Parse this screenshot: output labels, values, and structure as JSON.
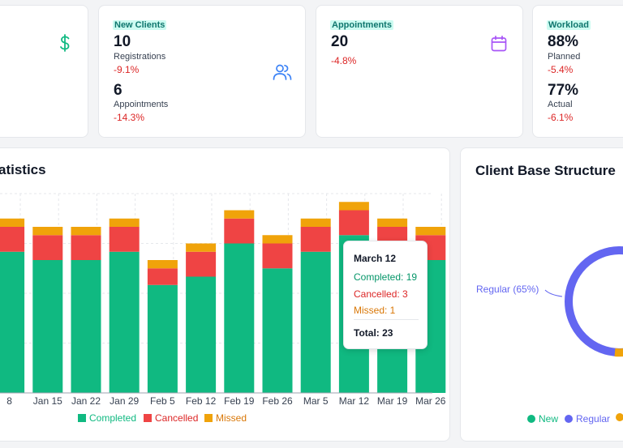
{
  "kpi": {
    "card0": {
      "icon": "dollar-icon"
    },
    "new_clients": {
      "label": "New Clients",
      "value1": "10",
      "sub1": "Registrations",
      "change1": "-9.1%",
      "value2": "6",
      "sub2": "Appointments",
      "change2": "-14.3%",
      "icon": "users-icon"
    },
    "appointments": {
      "label": "Appointments",
      "value": "20",
      "change": "-4.8%",
      "icon": "calendar-icon"
    },
    "workload": {
      "label": "Workload",
      "value1": "88%",
      "sub1": "Planned",
      "change1": "-5.4%",
      "value2": "77%",
      "sub2": "Actual",
      "change2": "-6.1%"
    }
  },
  "statistics": {
    "title": "atistics",
    "legend": {
      "completed": "Completed",
      "cancelled": "Cancelled",
      "missed": "Missed"
    },
    "tooltip": {
      "date": "March 12",
      "completed": "Completed: 19",
      "cancelled": "Cancelled: 3",
      "missed": "Missed: 1",
      "total": "Total: 23"
    }
  },
  "client_base": {
    "title": "Client Base Structure",
    "regular_label": "Regular (65%)",
    "legend": {
      "new": "New",
      "regular": "Regular"
    }
  },
  "colors": {
    "completed": "#10b981",
    "cancelled": "#ef4444",
    "missed": "#f0a30a",
    "regular": "#6366f1"
  },
  "chart_data": {
    "type": "bar",
    "stacked": true,
    "categories": [
      "8",
      "Jan 15",
      "Jan 22",
      "Jan 29",
      "Feb 5",
      "Feb 12",
      "Feb 19",
      "Feb 26",
      "Mar 5",
      "Mar 12",
      "Mar 19",
      "Mar 26"
    ],
    "series": [
      {
        "name": "Completed",
        "values": [
          17,
          16,
          16,
          17,
          13,
          14,
          18,
          15,
          17,
          19,
          17,
          16
        ]
      },
      {
        "name": "Cancelled",
        "values": [
          3,
          3,
          3,
          3,
          2,
          3,
          3,
          3,
          3,
          3,
          3,
          3
        ]
      },
      {
        "name": "Missed",
        "values": [
          1,
          1,
          1,
          1,
          1,
          1,
          1,
          1,
          1,
          1,
          1,
          1
        ]
      }
    ],
    "ylim": [
      0,
      24
    ],
    "grid": true,
    "legend": "bottom"
  }
}
